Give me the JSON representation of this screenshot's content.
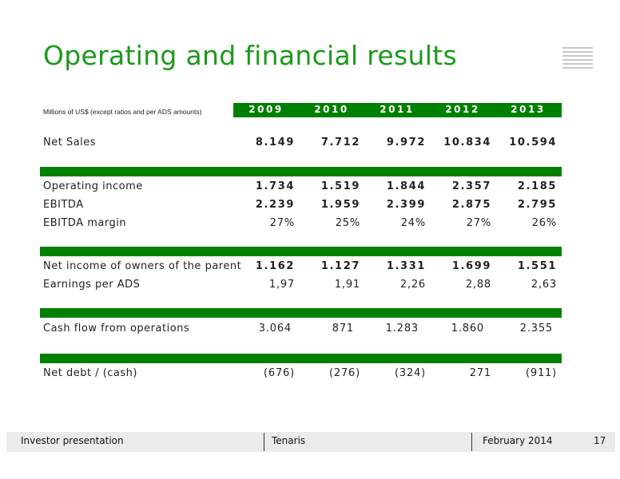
{
  "title": "Operating and financial results",
  "units_note": "Millions of US$ (except ratios and per ADS amounts)",
  "years": [
    "2009",
    "2010",
    "2011",
    "2012",
    "2013"
  ],
  "rows": [
    {
      "label": "Net Sales",
      "values": [
        "8.149",
        "7.712",
        "9.972",
        "10.834",
        "10.594"
      ]
    },
    {
      "label": "Operating income",
      "values": [
        "1.734",
        "1.519",
        "1.844",
        "2.357",
        "2.185"
      ]
    },
    {
      "label": "EBITDA",
      "values": [
        "2.239",
        "1.959",
        "2.399",
        "2.875",
        "2.795"
      ]
    },
    {
      "label": "EBITDA margin",
      "values": [
        "27%",
        "25%",
        "24%",
        "27%",
        "26%"
      ]
    },
    {
      "label": "Net income of owners of the parent",
      "values": [
        "1.162",
        "1.127",
        "1.331",
        "1.699",
        "1.551"
      ]
    },
    {
      "label": "Earnings per ADS",
      "values": [
        "1,97",
        "1,91",
        "2,26",
        "2,88",
        "2,63"
      ]
    },
    {
      "label": "Cash flow from operations",
      "values": [
        "3.064",
        "871",
        "1.283",
        "1.860",
        "2.355"
      ]
    },
    {
      "label": "Net debt / (cash)",
      "values": [
        "(676)",
        "(276)",
        "(324)",
        "271",
        "(911)"
      ]
    }
  ],
  "footer": {
    "left": "Investor presentation",
    "center": "Tenaris",
    "date": "February 2014",
    "page": "17"
  },
  "colors": {
    "accent": "#1b9a1b",
    "bar": "#008000",
    "footer_bg": "#ebebeb"
  }
}
